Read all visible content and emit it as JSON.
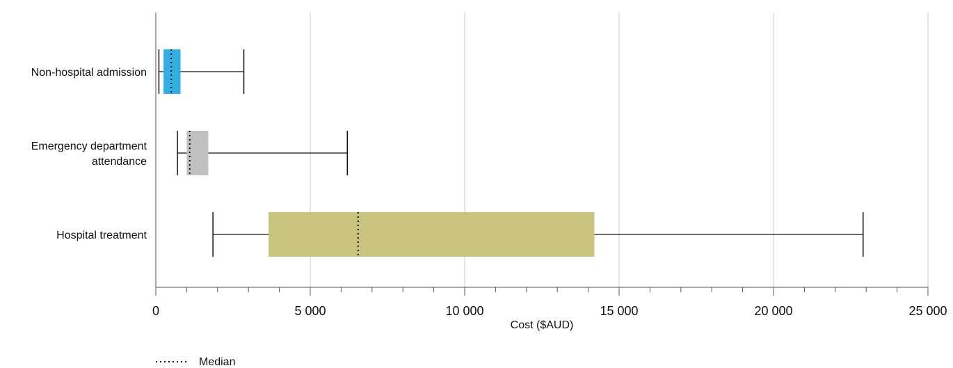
{
  "chart_data": {
    "type": "boxplot",
    "orientation": "horizontal",
    "xlabel": "Cost ($AUD)",
    "xlim": [
      0,
      25000
    ],
    "major_tick_step": 5000,
    "minor_tick_step": 1000,
    "tick_labels": [
      "0",
      "5 000",
      "10 000",
      "15 000",
      "20 000",
      "25 000"
    ],
    "grid": true,
    "legend": {
      "position": "bottom-left",
      "median_label": "Median"
    },
    "categories": [
      {
        "label_lines": [
          "Non-hospital admission"
        ],
        "min": 100,
        "q1": 250,
        "median": 500,
        "q3": 800,
        "max": 2850,
        "color": "#33aee3"
      },
      {
        "label_lines": [
          "Emergency department",
          "attendance"
        ],
        "min": 700,
        "q1": 1000,
        "median": 1100,
        "q3": 1700,
        "max": 6200,
        "color": "#c0c0c0"
      },
      {
        "label_lines": [
          "Hospital treatment"
        ],
        "min": 1850,
        "q1": 3650,
        "median": 6550,
        "q3": 14200,
        "max": 22900,
        "color": "#c8c47e"
      }
    ]
  }
}
